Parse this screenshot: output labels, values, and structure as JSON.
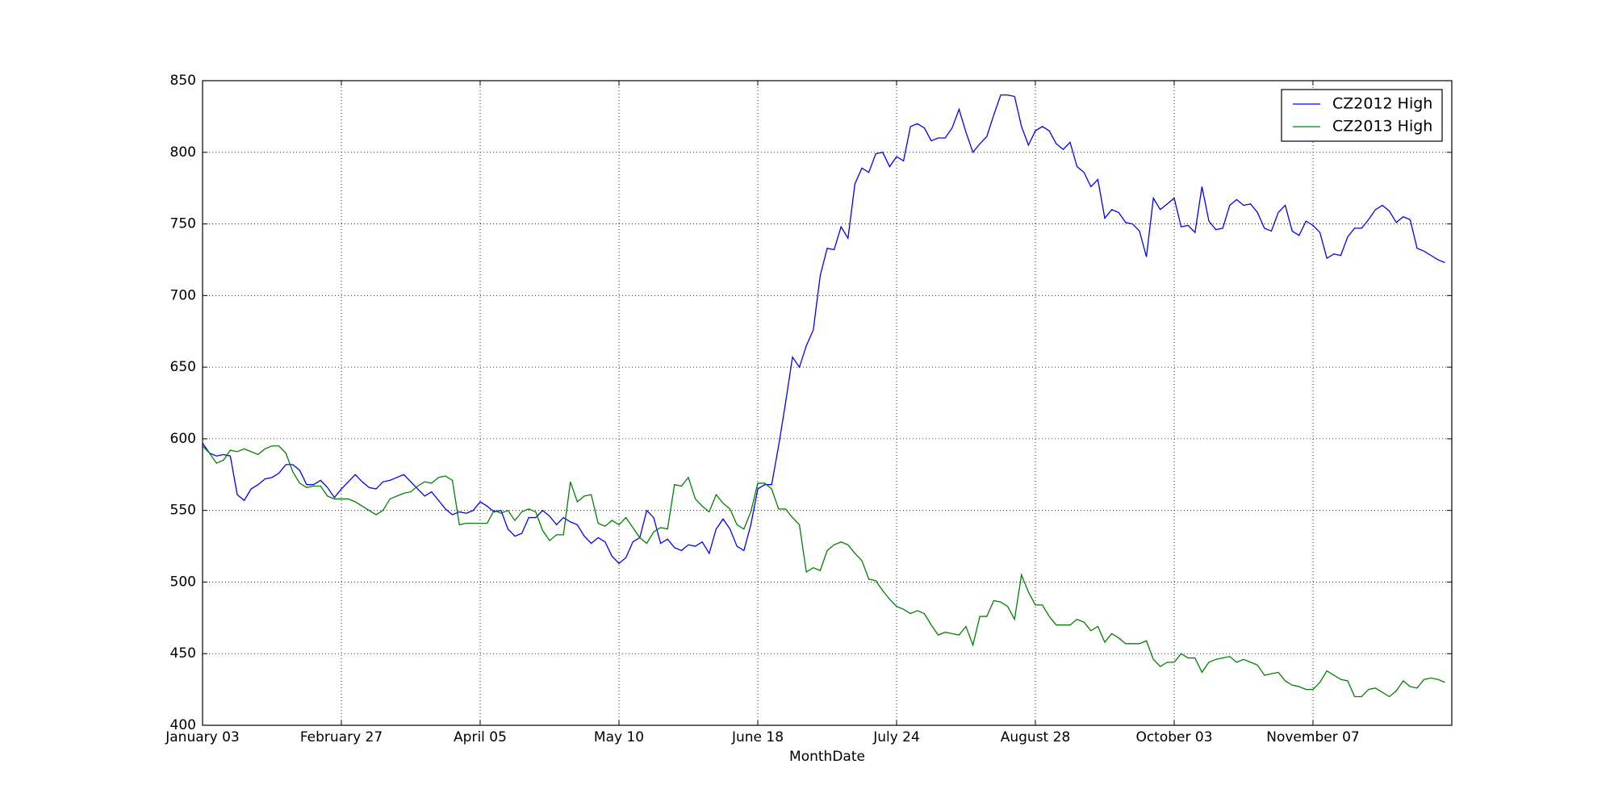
{
  "chart_data": {
    "type": "line",
    "x_label": "MonthDate",
    "categories": [
      "January 03",
      null,
      null,
      null,
      null,
      null,
      null,
      null,
      null,
      null,
      null,
      null,
      null,
      null,
      null,
      null,
      null,
      null,
      null,
      null,
      "February 27",
      null,
      null,
      null,
      null,
      null,
      null,
      null,
      null,
      null,
      null,
      null,
      null,
      null,
      null,
      null,
      null,
      null,
      null,
      null,
      "April 05",
      null,
      null,
      null,
      null,
      null,
      null,
      null,
      null,
      null,
      null,
      null,
      null,
      null,
      null,
      null,
      null,
      null,
      null,
      null,
      "May 10",
      null,
      null,
      null,
      null,
      null,
      null,
      null,
      null,
      null,
      null,
      null,
      null,
      null,
      null,
      null,
      null,
      null,
      null,
      null,
      "June 18",
      null,
      null,
      null,
      null,
      null,
      null,
      null,
      null,
      null,
      null,
      null,
      null,
      null,
      null,
      null,
      null,
      null,
      null,
      null,
      "July 24",
      null,
      null,
      null,
      null,
      null,
      null,
      null,
      null,
      null,
      null,
      null,
      null,
      null,
      null,
      null,
      null,
      null,
      null,
      null,
      "August 28",
      null,
      null,
      null,
      null,
      null,
      null,
      null,
      null,
      null,
      null,
      null,
      null,
      null,
      null,
      null,
      null,
      null,
      null,
      null,
      "October 03",
      null,
      null,
      null,
      null,
      null,
      null,
      null,
      null,
      null,
      null,
      null,
      null,
      null,
      null,
      null,
      null,
      null,
      null,
      null,
      "November 07",
      null,
      null,
      null,
      null,
      null,
      null,
      null,
      null,
      null,
      null,
      null,
      null,
      null,
      null,
      null,
      null,
      null,
      null,
      null
    ],
    "series": [
      {
        "name": "CZ2012 High",
        "color": "#0000ff",
        "values": [
          597,
          590,
          588,
          589,
          588,
          561,
          557,
          565,
          568,
          572,
          573,
          576,
          582,
          582,
          578,
          568,
          568,
          571,
          566,
          559,
          565,
          570,
          575,
          570,
          566,
          565,
          570,
          571,
          573,
          575,
          570,
          565,
          560,
          563,
          557,
          551,
          547,
          549,
          548,
          550,
          556,
          553,
          549,
          550,
          537,
          532,
          534,
          545,
          545,
          550,
          546,
          540,
          545,
          542,
          540,
          532,
          527,
          531,
          528,
          518,
          513,
          517,
          528,
          531,
          550,
          545,
          527,
          530,
          524,
          522,
          526,
          525,
          528,
          520,
          537,
          544,
          537,
          525,
          522,
          540,
          565,
          568,
          568,
          595,
          625,
          657,
          650,
          665,
          676,
          714,
          733,
          732,
          748,
          740,
          778,
          789,
          786,
          799,
          800,
          790,
          797,
          794,
          818,
          820,
          817,
          808,
          810,
          810,
          817,
          830,
          814,
          800,
          806,
          811,
          826,
          840,
          840,
          839,
          818,
          805,
          815,
          818,
          815,
          806,
          802,
          807,
          790,
          786,
          776,
          781,
          754,
          760,
          758,
          751,
          750,
          745,
          727,
          768,
          760,
          764,
          768,
          748,
          749,
          744,
          776,
          752,
          746,
          747,
          763,
          767,
          763,
          764,
          758,
          747,
          745,
          758,
          763,
          745,
          742,
          752,
          749,
          744,
          726,
          729,
          728,
          741,
          747,
          747,
          753,
          760,
          763,
          759,
          751,
          755,
          753,
          733,
          731,
          728,
          725,
          723
        ]
      },
      {
        "name": "CZ2013 High",
        "color": "#008000",
        "values": [
          595,
          590,
          583,
          585,
          592,
          591,
          593,
          591,
          589,
          593,
          595,
          595,
          590,
          577,
          569,
          566,
          567,
          567,
          560,
          558,
          558,
          558,
          556,
          553,
          550,
          547,
          550,
          558,
          560,
          562,
          563,
          567,
          570,
          569,
          573,
          574,
          571,
          540,
          541,
          541,
          541,
          541,
          550,
          548,
          550,
          543,
          549,
          551,
          549,
          536,
          529,
          533,
          533,
          570,
          556,
          560,
          561,
          541,
          539,
          543,
          540,
          545,
          538,
          531,
          527,
          535,
          538,
          537,
          568,
          567,
          573,
          558,
          553,
          549,
          561,
          555,
          551,
          540,
          537,
          549,
          569,
          569,
          565,
          551,
          551,
          545,
          540,
          507,
          510,
          508,
          522,
          526,
          528,
          526,
          520,
          515,
          502,
          501,
          494,
          488,
          483,
          481,
          478,
          480,
          478,
          470,
          463,
          465,
          464,
          463,
          469,
          456,
          476,
          476,
          487,
          486,
          483,
          474,
          505,
          493,
          484,
          484,
          476,
          470,
          470,
          470,
          474,
          472,
          466,
          469,
          458,
          464,
          461,
          457,
          457,
          457,
          459,
          446,
          441,
          444,
          444,
          450,
          447,
          447,
          437,
          444,
          446,
          447,
          448,
          444,
          446,
          444,
          442,
          435,
          436,
          437,
          431,
          428,
          427,
          425,
          425,
          430,
          438,
          435,
          432,
          431,
          420,
          420,
          425,
          426,
          423,
          420,
          424,
          431,
          427,
          426,
          432,
          433,
          432,
          430
        ]
      }
    ],
    "ylim": [
      400,
      850
    ],
    "yticks": [
      400,
      450,
      500,
      550,
      600,
      650,
      700,
      750,
      800,
      850
    ],
    "grid": true,
    "legend": "upper right"
  }
}
